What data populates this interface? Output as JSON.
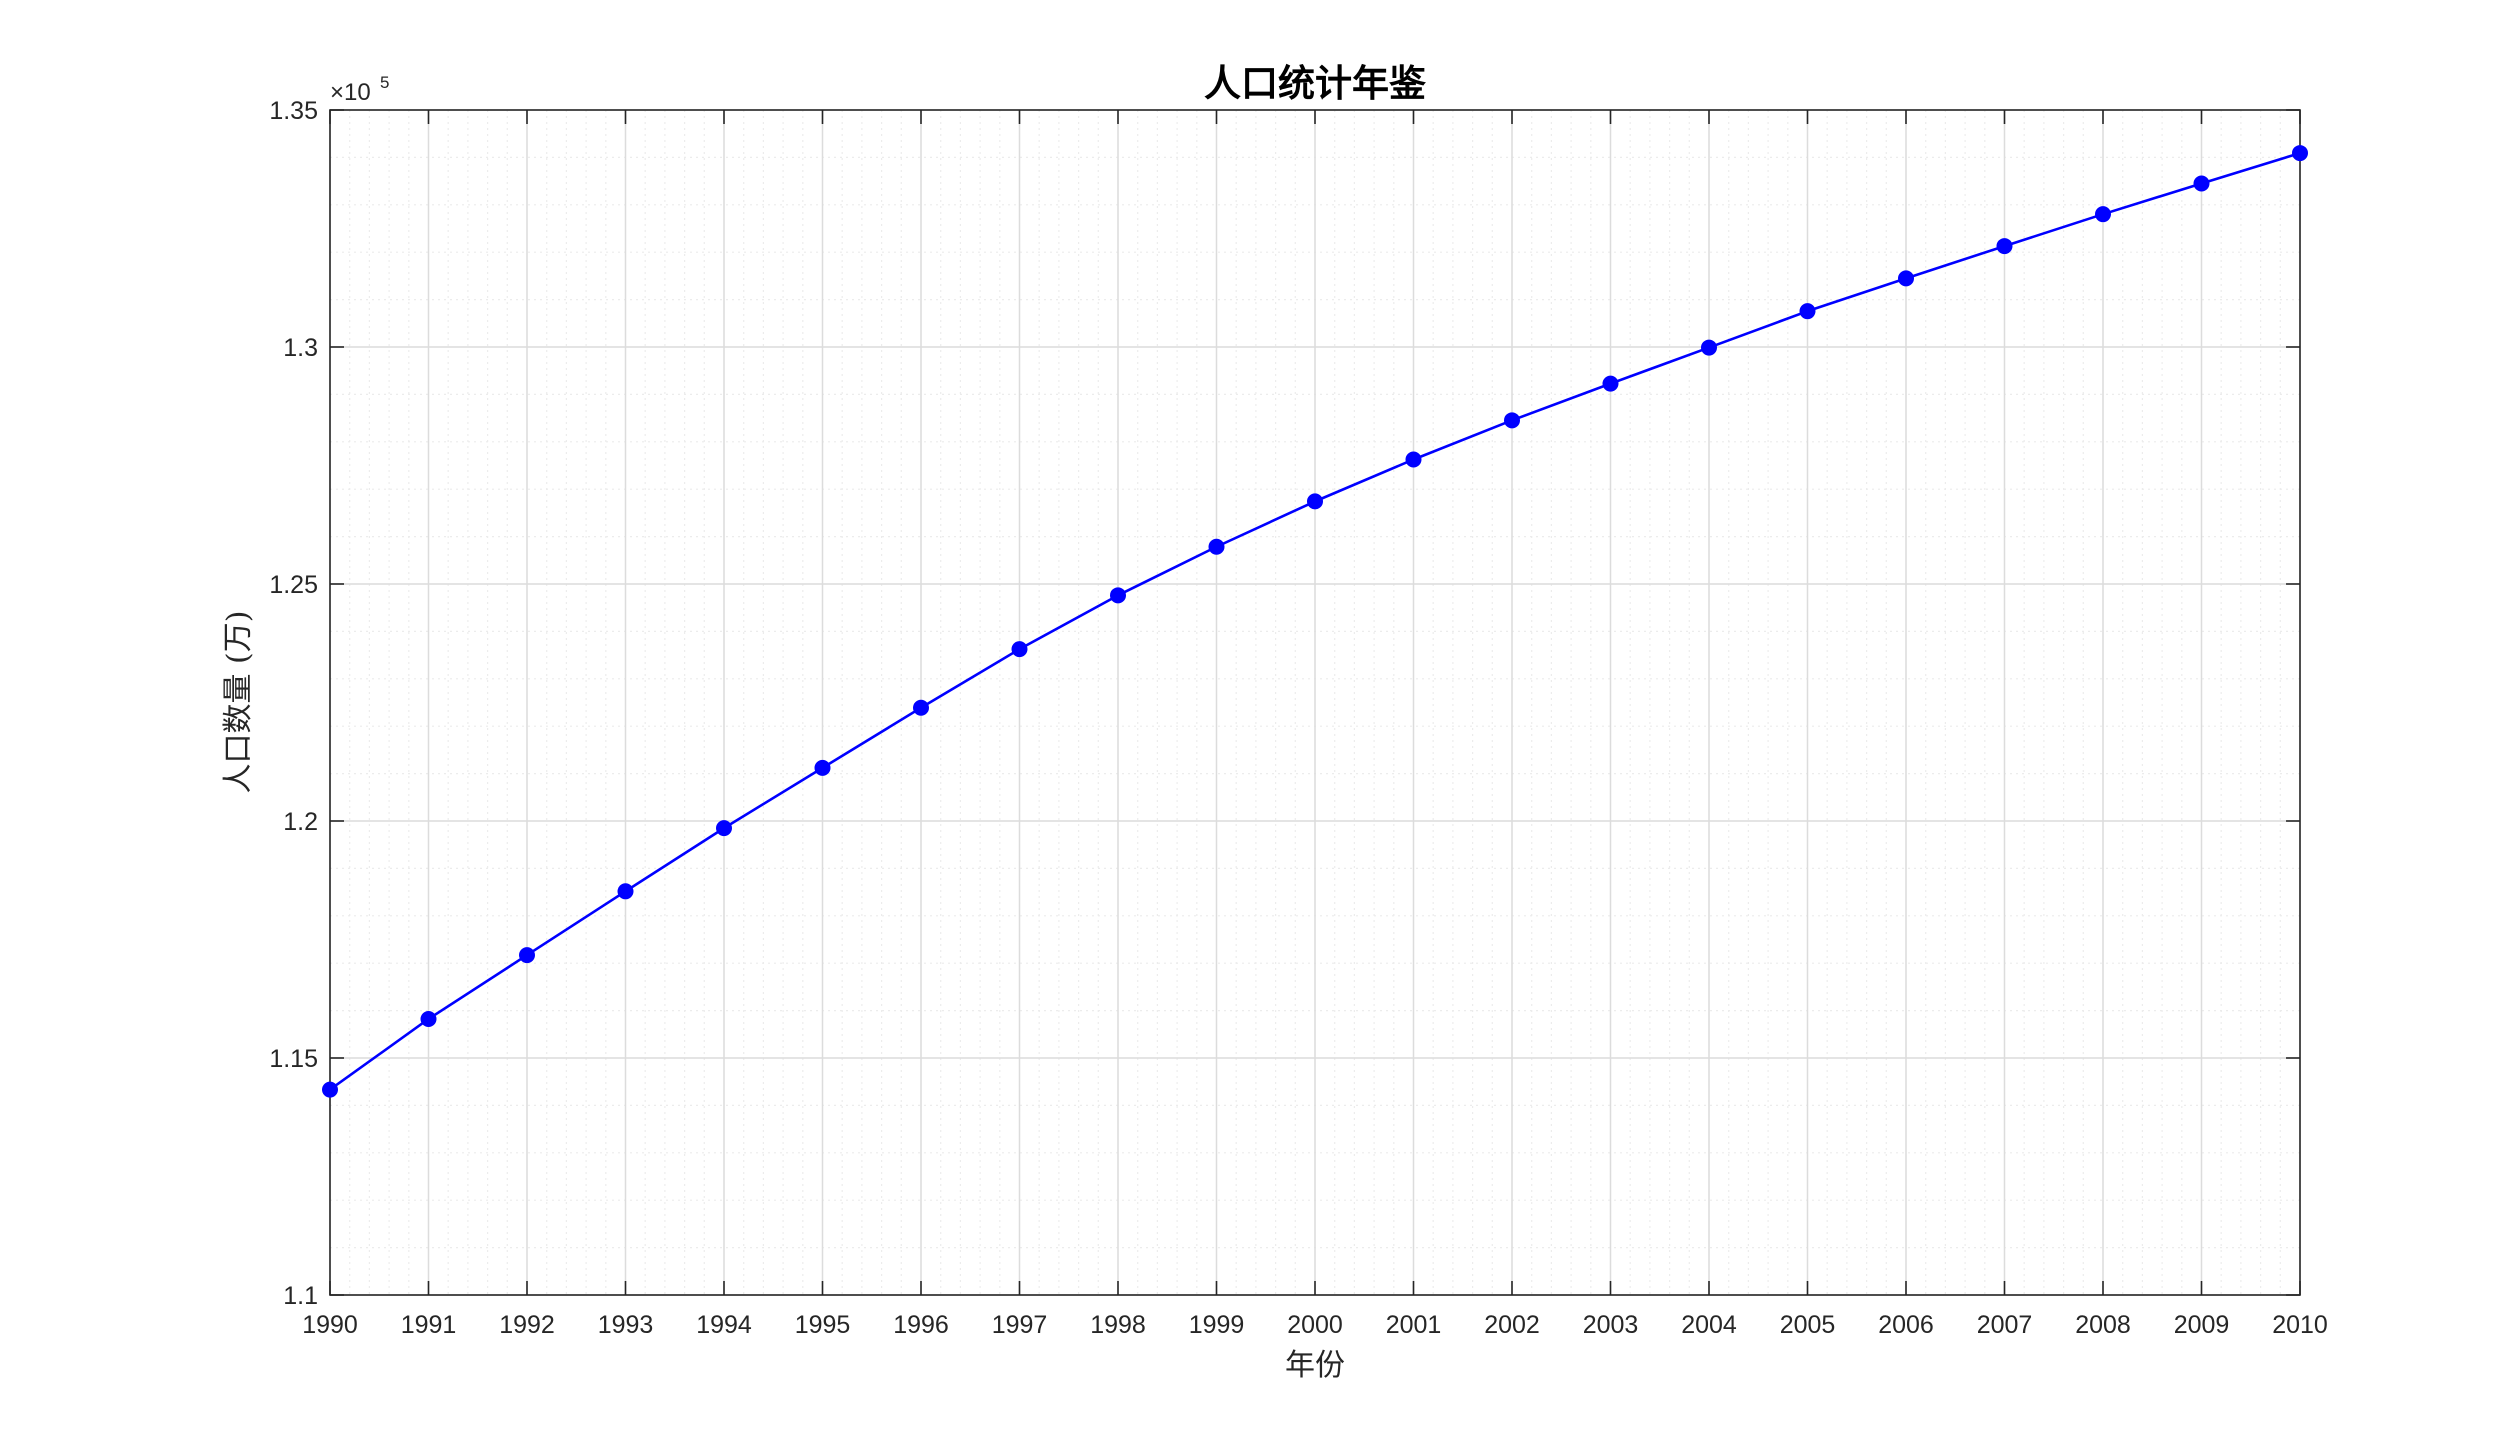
{
  "chart_data": {
    "type": "line",
    "title": "人口统计年鉴",
    "xlabel": "年份",
    "ylabel": "人口数量 (万)",
    "y_exponent_label": "×10",
    "y_exponent_power": "5",
    "x": [
      1990,
      1991,
      1992,
      1993,
      1994,
      1995,
      1996,
      1997,
      1998,
      1999,
      2000,
      2001,
      2002,
      2003,
      2004,
      2005,
      2006,
      2007,
      2008,
      2009,
      2010
    ],
    "x_tick_labels": [
      "1990",
      "1991",
      "1992",
      "1993",
      "1994",
      "1995",
      "1996",
      "1997",
      "1998",
      "1999",
      "2000",
      "2001",
      "2002",
      "2003",
      "2004",
      "2005",
      "2006",
      "2007",
      "2008",
      "2009",
      "2010"
    ],
    "series": [
      {
        "values": [
          114333,
          115823,
          117171,
          118517,
          119850,
          121121,
          122389,
          123626,
          124761,
          125786,
          126743,
          127627,
          128453,
          129227,
          129988,
          130756,
          131448,
          132129,
          132802,
          133450,
          134091
        ]
      }
    ],
    "ylim": [
      110000,
      135000
    ],
    "y_ticks": [
      110000,
      115000,
      120000,
      125000,
      130000,
      135000
    ],
    "y_tick_labels": [
      "1.1",
      "1.15",
      "1.2",
      "1.25",
      "1.3",
      "1.35"
    ],
    "grid": true,
    "minor_grid": true,
    "line_color": "#0000ff",
    "marker_color": "#0000ff",
    "axis_color": "#262626",
    "grid_color": "#dcdcdc"
  }
}
